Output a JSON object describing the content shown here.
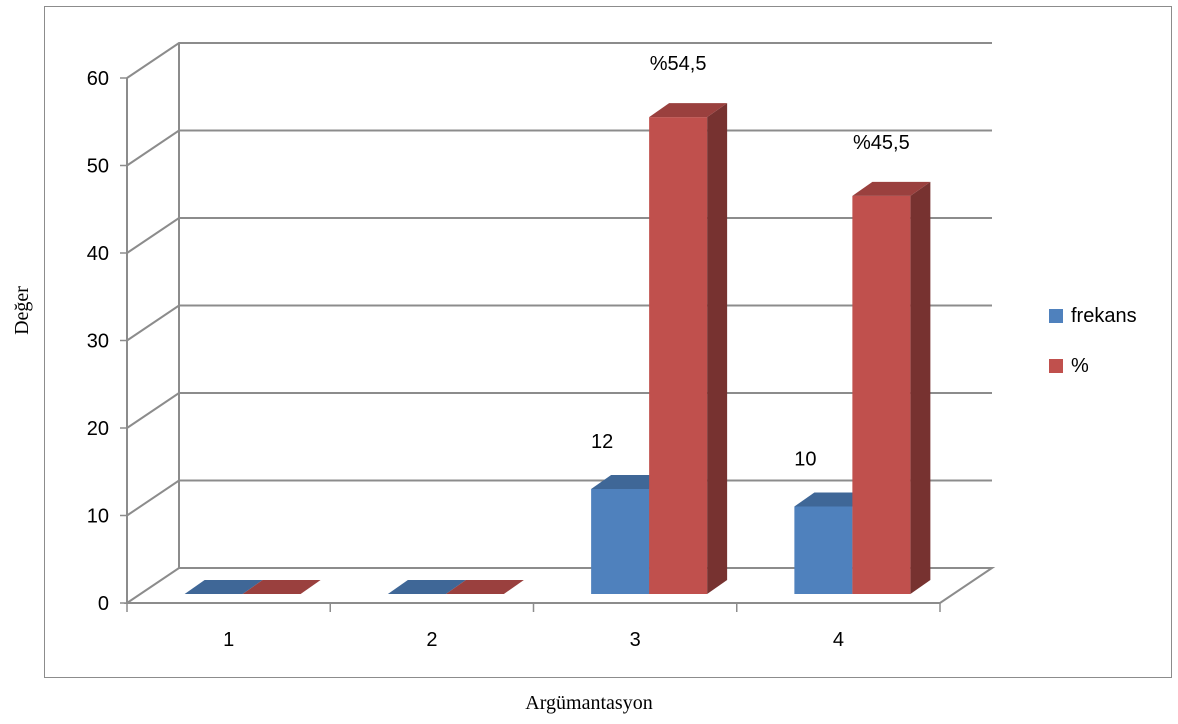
{
  "chart_data": {
    "type": "bar",
    "title": "",
    "xlabel": "Argümantasyon",
    "ylabel": "Değer",
    "categories": [
      "1",
      "2",
      "3",
      "4"
    ],
    "series": [
      {
        "name": "frekans",
        "values": [
          0,
          0,
          12,
          10
        ],
        "labels": [
          "",
          "",
          "12",
          "10"
        ],
        "color": "#4f81bd"
      },
      {
        "name": "%",
        "values": [
          0,
          0,
          54.5,
          45.5
        ],
        "labels": [
          "",
          "",
          "%54,5",
          "%45,5"
        ],
        "color": "#c0504d"
      }
    ],
    "y_ticks": [
      "0",
      "10",
      "20",
      "30",
      "40",
      "50",
      "60"
    ],
    "ylim": [
      0,
      60
    ],
    "grid": true,
    "legend_position": "right",
    "three_d": true
  }
}
